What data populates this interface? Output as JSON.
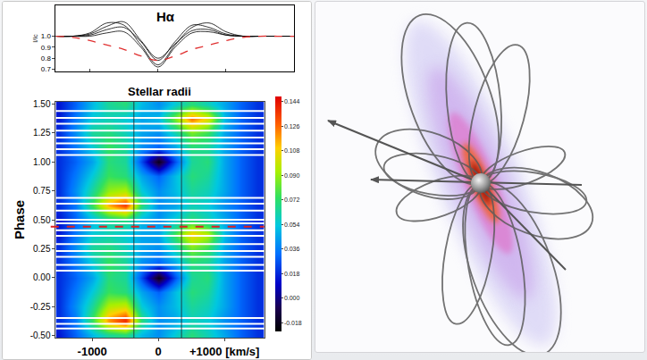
{
  "chart_data": [
    {
      "type": "line",
      "title": "Hα",
      "ylabel": "I/Ic",
      "x": [
        -1500,
        -1250,
        -1000,
        -750,
        -500,
        -250,
        0,
        250,
        500,
        750,
        1000,
        1250,
        1500,
        1750,
        2000
      ],
      "series": [
        {
          "color": "#000000",
          "values": [
            1.0,
            1.0,
            1.03,
            1.12,
            1.1,
            0.92,
            0.74,
            0.92,
            1.08,
            1.12,
            1.04,
            1.0,
            1.0,
            1.0,
            1.0
          ]
        },
        {
          "color": "#000000",
          "values": [
            1.0,
            1.0,
            1.01,
            1.06,
            1.08,
            0.95,
            0.78,
            0.95,
            1.1,
            1.08,
            1.02,
            1.0,
            1.0,
            1.0,
            1.0
          ]
        },
        {
          "color": "#000000",
          "values": [
            1.0,
            1.0,
            1.0,
            1.03,
            1.04,
            0.9,
            0.72,
            0.9,
            1.03,
            1.04,
            1.01,
            1.0,
            1.0,
            1.0,
            1.0
          ]
        },
        {
          "color": "#000000",
          "values": [
            1.0,
            1.0,
            1.02,
            1.09,
            1.13,
            0.96,
            0.8,
            0.93,
            1.05,
            1.06,
            1.01,
            1.0,
            1.0,
            1.0,
            1.0
          ]
        },
        {
          "color": "#e03030",
          "line_style": "dash",
          "values": [
            1.0,
            0.99,
            0.96,
            0.92,
            0.88,
            0.82,
            0.78,
            0.82,
            0.88,
            0.92,
            0.96,
            0.99,
            1.0,
            1.0,
            1.0
          ]
        }
      ],
      "xlim": [
        -1500,
        2000
      ],
      "ylim": [
        0.68,
        1.28
      ],
      "yticks": [
        0.7,
        0.8,
        0.9,
        {
          "value": 1,
          "label": "1.0"
        }
      ],
      "tick_labels": "y"
    },
    {
      "type": "heatmap",
      "title": "Stellar radii",
      "ylabel": "Phase",
      "x": [
        -1500,
        -1250,
        -1000,
        -750,
        -500,
        -250,
        0,
        250,
        500,
        750,
        1000,
        1250,
        1500
      ],
      "y": [
        -0.5,
        -0.375,
        -0.25,
        -0.125,
        0,
        0.125,
        0.25,
        0.375,
        0.5,
        0.625,
        0.75,
        0.875,
        1.0,
        1.125,
        1.25,
        1.375,
        1.5
      ],
      "z": [
        [
          0.015,
          0.03,
          0.05,
          0.065,
          0.07,
          0.05,
          0.04,
          0.055,
          0.07,
          0.06,
          0.045,
          0.03,
          0.02
        ],
        [
          0.02,
          0.035,
          0.075,
          0.12,
          0.14,
          0.07,
          0.04,
          0.045,
          0.06,
          0.055,
          0.04,
          0.03,
          0.02
        ],
        [
          0.02,
          0.04,
          0.065,
          0.095,
          0.1,
          0.055,
          0.04,
          0.05,
          0.065,
          0.06,
          0.045,
          0.03,
          0.02
        ],
        [
          0.02,
          0.035,
          0.055,
          0.075,
          0.07,
          0.045,
          0.03,
          0.05,
          0.07,
          0.065,
          0.045,
          0.03,
          0.02
        ],
        [
          0.02,
          0.03,
          0.045,
          0.07,
          0.065,
          0.025,
          -0.018,
          0.025,
          0.065,
          0.07,
          0.045,
          0.03,
          0.02
        ],
        [
          0.02,
          0.035,
          0.055,
          0.075,
          0.065,
          0.04,
          0.03,
          0.045,
          0.07,
          0.065,
          0.045,
          0.03,
          0.02
        ],
        [
          0.02,
          0.04,
          0.065,
          0.07,
          0.06,
          0.045,
          0.04,
          0.06,
          0.085,
          0.075,
          0.045,
          0.03,
          0.02
        ],
        [
          0.015,
          0.035,
          0.055,
          0.06,
          0.055,
          0.045,
          0.045,
          0.075,
          0.11,
          0.095,
          0.05,
          0.03,
          0.02
        ],
        [
          0.015,
          0.03,
          0.05,
          0.065,
          0.07,
          0.05,
          0.04,
          0.055,
          0.07,
          0.06,
          0.045,
          0.03,
          0.02
        ],
        [
          0.02,
          0.035,
          0.075,
          0.115,
          0.135,
          0.07,
          0.04,
          0.045,
          0.06,
          0.055,
          0.04,
          0.03,
          0.02
        ],
        [
          0.02,
          0.04,
          0.065,
          0.09,
          0.095,
          0.055,
          0.04,
          0.05,
          0.065,
          0.06,
          0.045,
          0.03,
          0.02
        ],
        [
          0.02,
          0.035,
          0.055,
          0.075,
          0.07,
          0.045,
          0.03,
          0.05,
          0.07,
          0.065,
          0.045,
          0.03,
          0.02
        ],
        [
          0.02,
          0.03,
          0.045,
          0.07,
          0.065,
          0.025,
          -0.018,
          0.025,
          0.065,
          0.07,
          0.045,
          0.03,
          0.02
        ],
        [
          0.02,
          0.035,
          0.055,
          0.075,
          0.065,
          0.04,
          0.03,
          0.045,
          0.07,
          0.065,
          0.045,
          0.03,
          0.02
        ],
        [
          0.02,
          0.04,
          0.065,
          0.07,
          0.06,
          0.045,
          0.04,
          0.06,
          0.085,
          0.075,
          0.045,
          0.03,
          0.02
        ],
        [
          0.015,
          0.035,
          0.055,
          0.06,
          0.055,
          0.045,
          0.05,
          0.085,
          0.125,
          0.105,
          0.05,
          0.03,
          0.02
        ],
        [
          0.015,
          0.03,
          0.05,
          0.065,
          0.07,
          0.05,
          0.04,
          0.055,
          0.07,
          0.06,
          0.045,
          0.03,
          0.02
        ]
      ],
      "xlim": [
        -1550,
        1600
      ],
      "ylim": [
        -0.52,
        1.52
      ],
      "xticks": [
        -1000,
        0,
        {
          "value": 1000,
          "label": "+1000 [km/s]"
        }
      ],
      "yticks": [
        {
          "value": -0.5,
          "label": "-0.50"
        },
        {
          "value": -0.25,
          "label": "-0.25"
        },
        {
          "value": 0,
          "label": "0.00"
        },
        {
          "value": 0.25,
          "label": "0.25"
        },
        {
          "value": 0.5,
          "label": "0.50"
        },
        {
          "value": 0.75,
          "label": "0.75"
        },
        {
          "value": 1,
          "label": "1.00"
        },
        {
          "value": 1.25,
          "label": "1.25"
        },
        {
          "value": 1.5,
          "label": "1.50"
        }
      ],
      "zlim": [
        -0.024,
        0.148
      ],
      "zticks": [
        -0.018,
        {
          "value": 0,
          "label": "0.000"
        },
        0.018,
        0.036,
        0.054,
        0.072,
        {
          "value": 0.09,
          "label": "0.090"
        },
        0.108,
        0.126,
        0.144
      ],
      "vlines": {
        "values": [
          -370,
          350
        ],
        "color": "#222222"
      },
      "hline": {
        "value": 0.44,
        "color": "#e02020",
        "line_style": "dash"
      },
      "gaps": {
        "values": [
          1.44,
          1.38,
          1.33,
          1.27,
          1.21,
          1.16,
          1.11,
          1.06,
          0.69,
          0.64,
          0.58,
          0.5,
          0.47,
          0.41,
          0.36,
          0.29,
          0.23,
          0.18,
          0.11,
          0.06,
          -0.35,
          -0.4,
          -0.44
        ],
        "color": "#ffffff"
      }
    }
  ]
}
